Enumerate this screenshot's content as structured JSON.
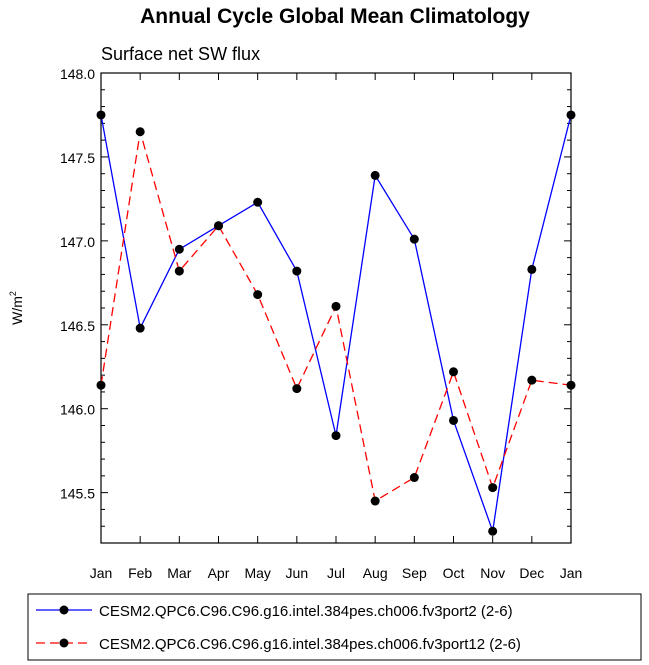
{
  "chart_data": {
    "type": "line",
    "title": "Annual Cycle Global Mean Climatology",
    "subtitle": "Surface net SW flux",
    "xlabel": "",
    "ylabel": "W/m",
    "ylabel_superscript": "2",
    "categories": [
      "Jan",
      "Feb",
      "Mar",
      "Apr",
      "May",
      "Jun",
      "Jul",
      "Aug",
      "Sep",
      "Oct",
      "Nov",
      "Dec",
      "Jan"
    ],
    "ylim": [
      145.2,
      148.0
    ],
    "yticks": [
      145.5,
      146.0,
      146.5,
      147.0,
      147.5,
      148.0
    ],
    "ytick_labels": [
      "145.5",
      "146.0",
      "146.5",
      "147.0",
      "147.5",
      "148.0"
    ],
    "grid": false,
    "legend_position": "bottom",
    "series": [
      {
        "name": "CESM2.QPC6.C96.C96.g16.intel.384pes.ch006.fv3port2 (2-6)",
        "color": "#0000ff",
        "dash": "solid",
        "values": [
          147.75,
          146.48,
          146.95,
          147.09,
          147.23,
          146.82,
          145.84,
          147.39,
          147.01,
          145.93,
          145.27,
          146.83,
          147.75
        ]
      },
      {
        "name": "CESM2.QPC6.C96.C96.g16.intel.384pes.ch006.fv3port12 (2-6)",
        "color": "#ff0000",
        "dash": "dashed",
        "values": [
          146.14,
          147.65,
          146.82,
          147.09,
          146.68,
          146.12,
          146.61,
          145.45,
          145.59,
          146.22,
          145.53,
          146.17,
          146.14
        ]
      }
    ]
  }
}
